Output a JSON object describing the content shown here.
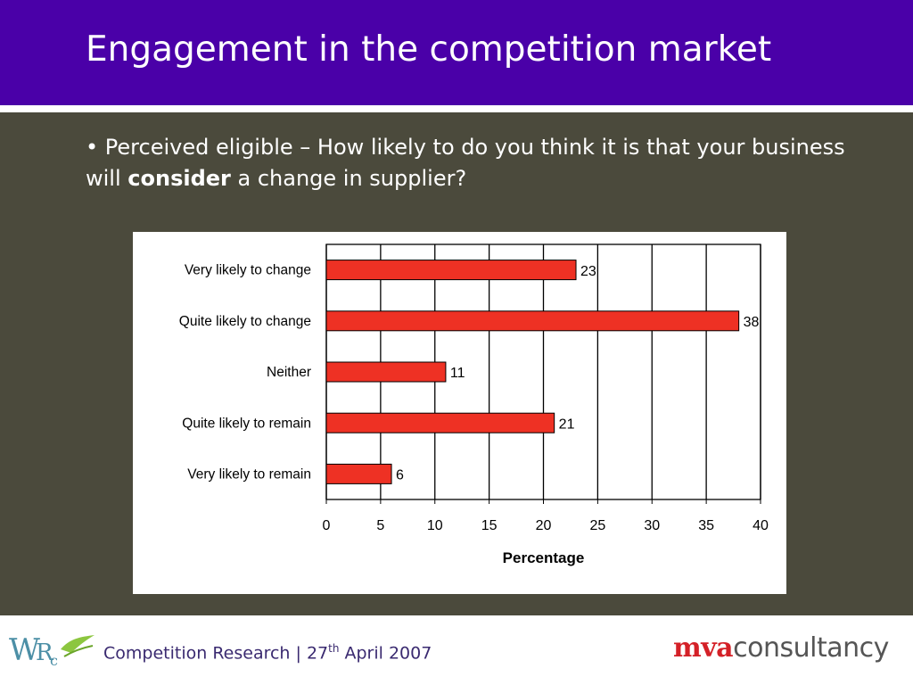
{
  "slide": {
    "title": "Engagement in the competition market",
    "question_bullet": "•",
    "question_pre": " Perceived eligible – How likely to do you think it is that your business will ",
    "question_bold": "consider",
    "question_post": " a change in supplier?"
  },
  "chart_data": {
    "type": "bar",
    "orientation": "horizontal",
    "categories": [
      "Very likely to change",
      "Quite likely to change",
      "Neither",
      "Quite likely to remain",
      "Very likely to remain"
    ],
    "values": [
      23,
      38,
      11,
      21,
      6
    ],
    "data_labels": [
      "23",
      "38",
      "11",
      "21",
      "6"
    ],
    "xlabel": "Percentage",
    "xlim": [
      0,
      40
    ],
    "xticks": [
      0,
      5,
      10,
      15,
      20,
      25,
      30,
      35,
      40
    ],
    "grid": true,
    "bar_color": "#ee3124"
  },
  "footer": {
    "logo_text": "WRc",
    "text_pre": "Competition Research | 27",
    "text_sup": "th",
    "text_post": " April 2007",
    "brand_a": "mva",
    "brand_b": "consultancy"
  }
}
